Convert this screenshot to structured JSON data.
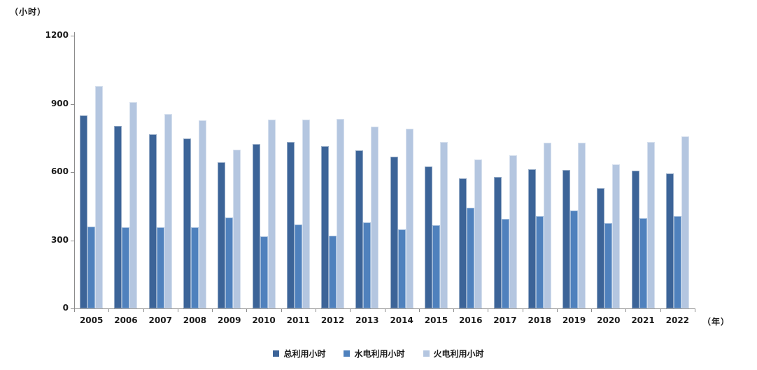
{
  "chart_data": {
    "type": "bar",
    "title": "",
    "ylabel": "（小时）",
    "xlabel": "（年）",
    "ylim": [
      0,
      1200
    ],
    "yticks": [
      0,
      300,
      600,
      900,
      1200
    ],
    "grid": false,
    "legend_position": "bottom",
    "categories": [
      "2005",
      "2006",
      "2007",
      "2008",
      "2009",
      "2010",
      "2011",
      "2012",
      "2013",
      "2014",
      "2015",
      "2016",
      "2017",
      "2018",
      "2019",
      "2020",
      "2021",
      "2022"
    ],
    "series": [
      {
        "name": "总利用小时",
        "color": "#3C6498",
        "values": [
          850,
          803,
          765,
          749,
          644,
          724,
          733,
          715,
          696,
          667,
          626,
          572,
          579,
          613,
          608,
          528,
          605,
          593
        ]
      },
      {
        "name": "水电利用小时",
        "color": "#4F81BD",
        "values": [
          360,
          357,
          357,
          357,
          400,
          316,
          370,
          321,
          379,
          347,
          367,
          444,
          395,
          405,
          432,
          375,
          398,
          406
        ]
      },
      {
        "name": "火电利用小时",
        "color": "#B4C6E0",
        "values": [
          978,
          908,
          856,
          829,
          698,
          832,
          831,
          834,
          801,
          790,
          733,
          654,
          675,
          728,
          728,
          634,
          733,
          757
        ]
      }
    ],
    "axis_color": "#8c8c8c",
    "text_color": "#1a1a1a"
  }
}
